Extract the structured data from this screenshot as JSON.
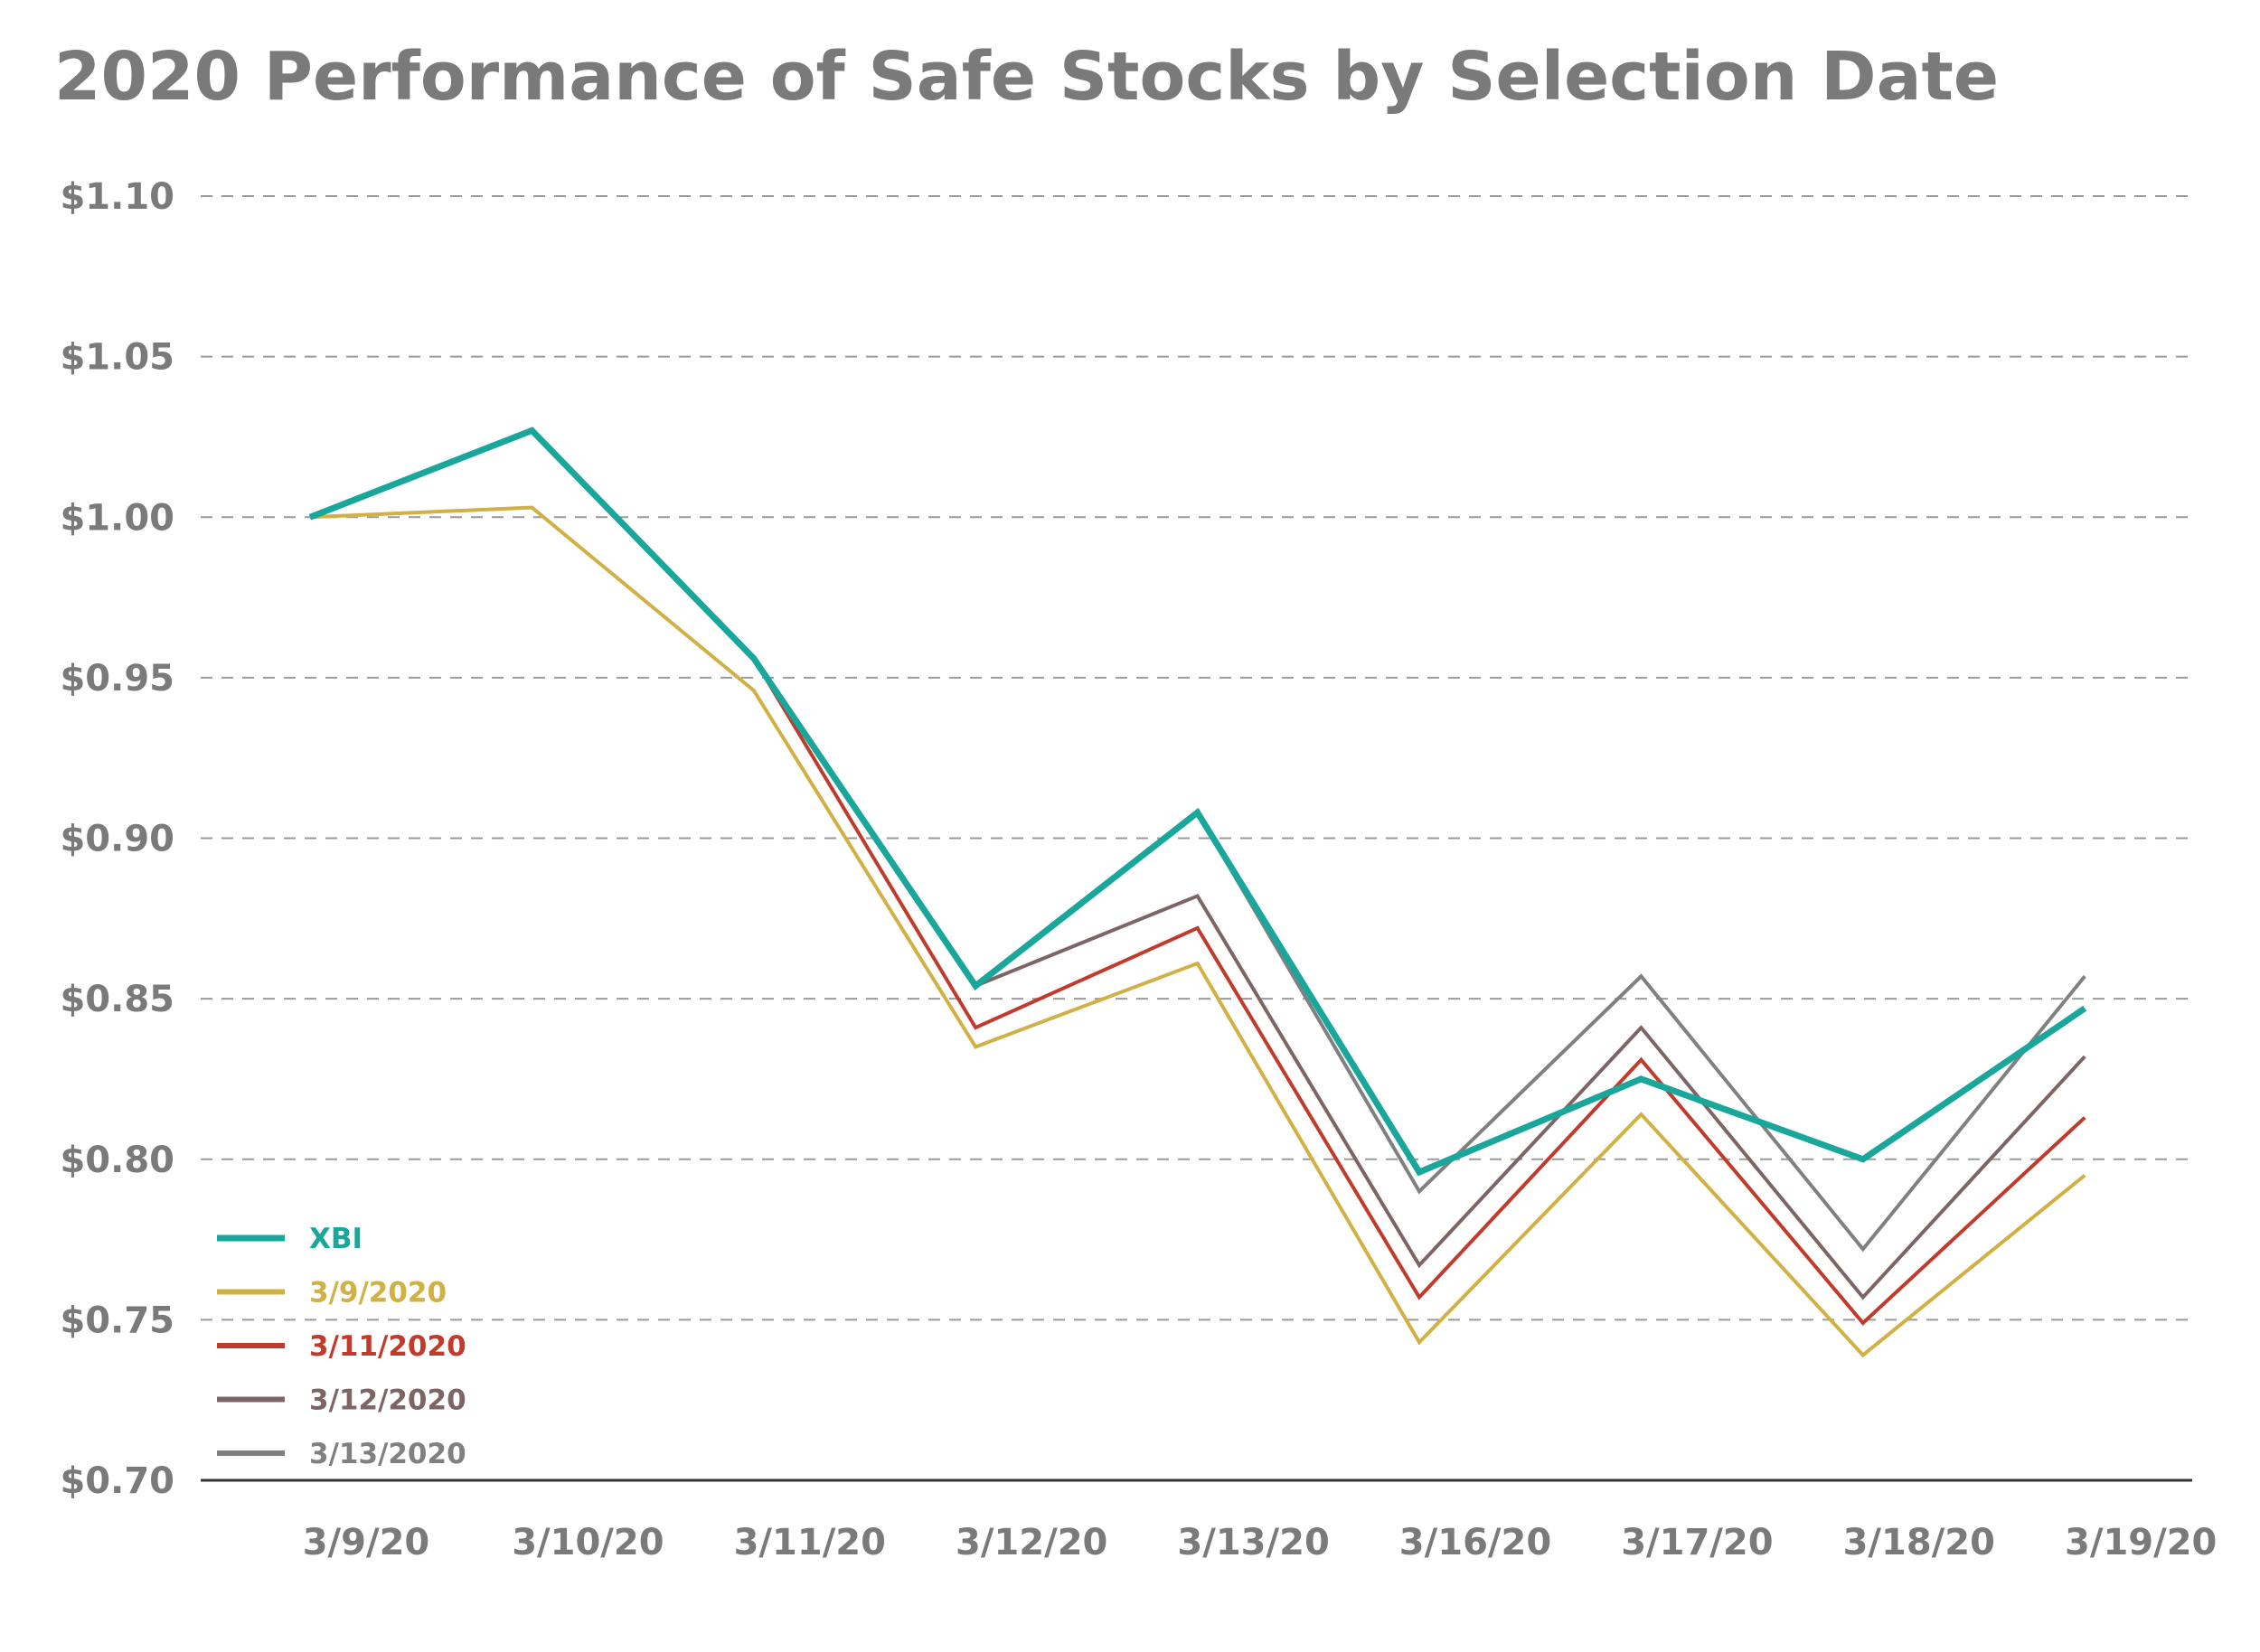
{
  "chart_data": {
    "type": "line",
    "title": "2020 Performance of Safe Stocks by Selection Date",
    "xlabel": "",
    "ylabel": "",
    "categories": [
      "3/9/20",
      "3/10/20",
      "3/11/20",
      "3/12/20",
      "3/13/20",
      "3/16/20",
      "3/17/20",
      "3/18/20",
      "3/19/20"
    ],
    "y_tick_labels": [
      "$1.10",
      "$1.05",
      "$1.00",
      "$0.95",
      "$0.90",
      "$0.85",
      "$0.80",
      "$0.75",
      "$0.70"
    ],
    "y_ticks": [
      1.1,
      1.05,
      1.0,
      0.95,
      0.9,
      0.85,
      0.8,
      0.75,
      0.7
    ],
    "ylim": [
      0.7,
      1.1
    ],
    "grid": "horizontal dashed",
    "legend_position": "bottom-left",
    "series": [
      {
        "name": "XBI",
        "color": "#1aa79b",
        "width": "thick",
        "values": [
          1.0,
          1.027,
          0.956,
          0.854,
          0.908,
          0.796,
          0.825,
          0.8,
          0.847
        ]
      },
      {
        "name": "3/9/2020",
        "color": "#d1b044",
        "width": "thin",
        "values": [
          1.0,
          1.003,
          0.946,
          0.835,
          0.861,
          0.743,
          0.814,
          0.739,
          0.795
        ]
      },
      {
        "name": "3/11/2020",
        "color": "#c03b2b",
        "width": "thin",
        "values": [
          null,
          null,
          0.956,
          0.841,
          0.872,
          0.757,
          0.831,
          0.749,
          0.813
        ]
      },
      {
        "name": "3/12/2020",
        "color": "#7d6566",
        "width": "thin",
        "values": [
          null,
          null,
          null,
          0.854,
          0.882,
          0.767,
          0.841,
          0.757,
          0.832
        ]
      },
      {
        "name": "3/13/2020",
        "color": "#808080",
        "width": "thin",
        "values": [
          null,
          null,
          null,
          null,
          0.908,
          0.79,
          0.857,
          0.772,
          0.857
        ]
      }
    ]
  }
}
